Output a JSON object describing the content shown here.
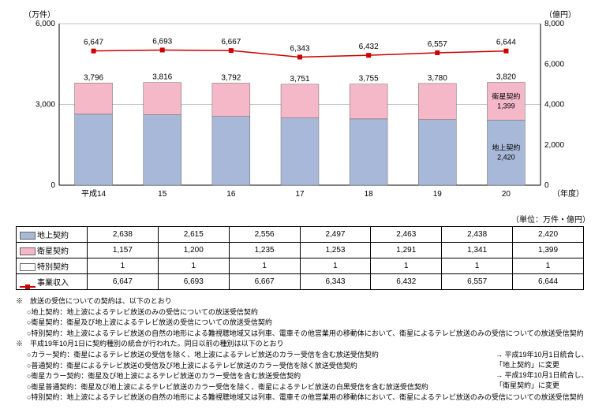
{
  "chart": {
    "type": "bar+line",
    "left_axis_label": "（万件）",
    "right_axis_label": "（億円）",
    "x_axis_label": "（年度）",
    "left_ylim": [
      0,
      6000
    ],
    "left_yticks": [
      0,
      3000,
      6000
    ],
    "right_ylim": [
      0,
      8000
    ],
    "right_yticks": [
      0,
      2000,
      4000,
      6000,
      8000
    ],
    "categories": [
      "平成14",
      "15",
      "16",
      "17",
      "18",
      "19",
      "20"
    ],
    "bar_totals": [
      "3,796",
      "3,816",
      "3,792",
      "3,751",
      "3,755",
      "3,780",
      "3,820"
    ],
    "stack_bottom_values": [
      2638,
      2615,
      2556,
      2497,
      2463,
      2438,
      2420
    ],
    "stack_top_values": [
      1157,
      1200,
      1235,
      1253,
      1291,
      1341,
      1399
    ],
    "stack_bottom_color": "#a8b8d8",
    "stack_top_color": "#f4b8c8",
    "line_values": [
      6647,
      6693,
      6667,
      6343,
      6432,
      6557,
      6644
    ],
    "line_labels": [
      "6,647",
      "6,693",
      "6,667",
      "6,343",
      "6,432",
      "6,557",
      "6,644"
    ],
    "line_color": "#cc0000",
    "last_bar_annotations": {
      "top": {
        "label": "衛星契約",
        "value": "1,399"
      },
      "bottom": {
        "label": "地上契約",
        "value": "2,420"
      }
    },
    "grid_color": "#888",
    "bar_width": 0.55,
    "plot_bg": "#ffffff"
  },
  "table": {
    "unit_label": "（単位：万件・億円）",
    "rows": [
      {
        "legend_type": "box",
        "legend_color": "#a8b8d8",
        "label": "地上契約",
        "values": [
          "2,638",
          "2,615",
          "2,556",
          "2,497",
          "2,463",
          "2,438",
          "2,420"
        ]
      },
      {
        "legend_type": "box",
        "legend_color": "#f4b8c8",
        "label": "衛星契約",
        "values": [
          "1,157",
          "1,200",
          "1,235",
          "1,253",
          "1,291",
          "1,341",
          "1,399"
        ]
      },
      {
        "legend_type": "box",
        "legend_color": "#ffffff",
        "label": "特別契約",
        "values": [
          "1",
          "1",
          "1",
          "1",
          "1",
          "1",
          "1"
        ]
      },
      {
        "legend_type": "line",
        "legend_color": "#cc0000",
        "label": "事業収入",
        "values": [
          "6,647",
          "6,693",
          "6,667",
          "6,343",
          "6,432",
          "6,557",
          "6,644"
        ]
      }
    ]
  },
  "notes": {
    "section1_header": "※　放送の受信についての契約は、以下のとおり",
    "section1_items": [
      "○地上契約：地上波によるテレビ放送のみの受信についての放送受信契約",
      "○衛星契約：衛星及び地上波によるテレビ放送の受信についての放送受信契約",
      "○特別契約：地上波によるテレビ放送の自然の地形による難視聴地域又は列車、電車その他営業用の移動体において、衛星によるテレビ放送のみの受信についての放送受信契約"
    ],
    "section2_header": "※　平成19年10月1日に契約種別の統合が行われた。同日以前の種別は以下のとおり",
    "section2_items": [
      "○カラー契約：衛星によるテレビ放送の受信を除く、地上波によるテレビ放送のカラー受信を含む放送受信契約",
      "○普通契約：衛星によるテレビ放送の受信及び地上波によるテレビ放送のカラー受信を除く放送受信契約",
      "○衛星カラー契約：衛星及び地上波によるテレビ放送のカラー受信を含む放送受信契約",
      "○衛星普通契約：衛星及び地上波によるテレビ放送のカラー受信を除く、衛星によるテレビ放送の白黒受信を含む放送受信契約",
      "○特別契約：地上波によるテレビ放送の自然の地形による難視聴地域又は列車、電車その他営業用の移動体において、衛星によるテレビ放送のみの受信についての放送受信契約"
    ],
    "arrow_note1": "平成19年10月1日統合し、「地上契約」に変更",
    "arrow_note2": "平成19年10月1日統合し、「衛星契約」に変更"
  }
}
